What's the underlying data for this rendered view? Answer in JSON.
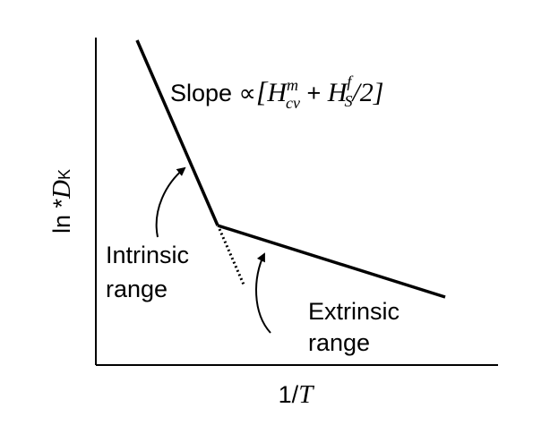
{
  "axes": {
    "x_label": {
      "prefix": "1/",
      "symbol": "T"
    },
    "y_label": {
      "prefix": "ln *",
      "symbol": "D",
      "subscript": "K"
    }
  },
  "slope_label": {
    "prefix": "Slope ∝",
    "open": "[",
    "term1": {
      "base": "H",
      "sub": "cv",
      "sup": "m"
    },
    "plus": " + ",
    "term2": {
      "base": "H",
      "sub": "S",
      "sup": "f"
    },
    "suffix": "/2]"
  },
  "intrinsic_label": [
    "Intrinsic",
    "range"
  ],
  "extrinsic_label": [
    "Extrinsic",
    "range"
  ]
}
